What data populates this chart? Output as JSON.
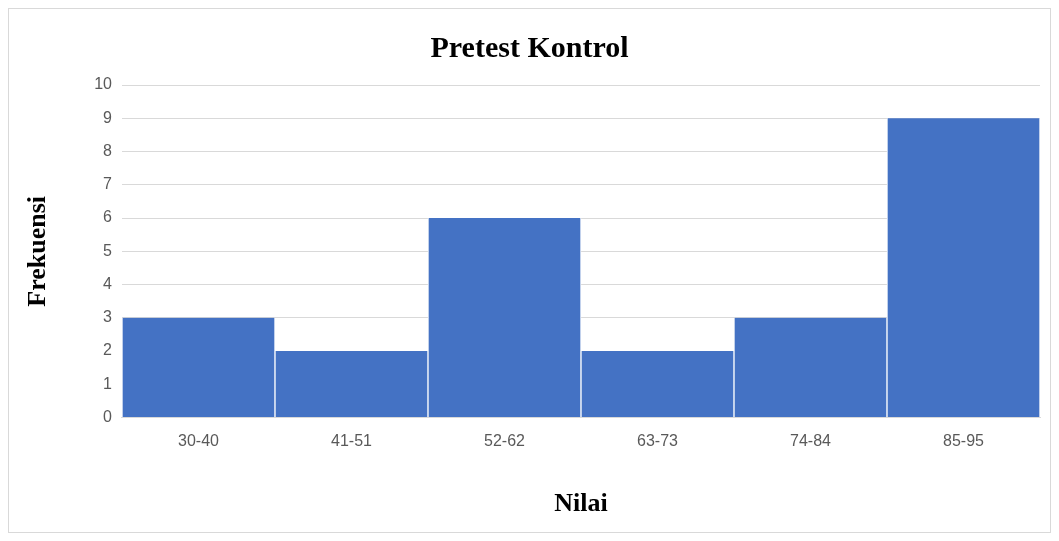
{
  "chart_data": {
    "type": "bar",
    "title": "Pretest Kontrol",
    "xlabel": "Nilai",
    "ylabel": "Frekuensi",
    "categories": [
      "30-40",
      "41-51",
      "52-62",
      "63-73",
      "74-84",
      "85-95"
    ],
    "values": [
      3,
      2,
      6,
      2,
      3,
      9
    ],
    "color": "#4472c4",
    "ylim": [
      0,
      10
    ],
    "yticks": [
      0,
      1,
      2,
      3,
      4,
      5,
      6,
      7,
      8,
      9,
      10
    ],
    "grid": "y",
    "legend": false
  }
}
